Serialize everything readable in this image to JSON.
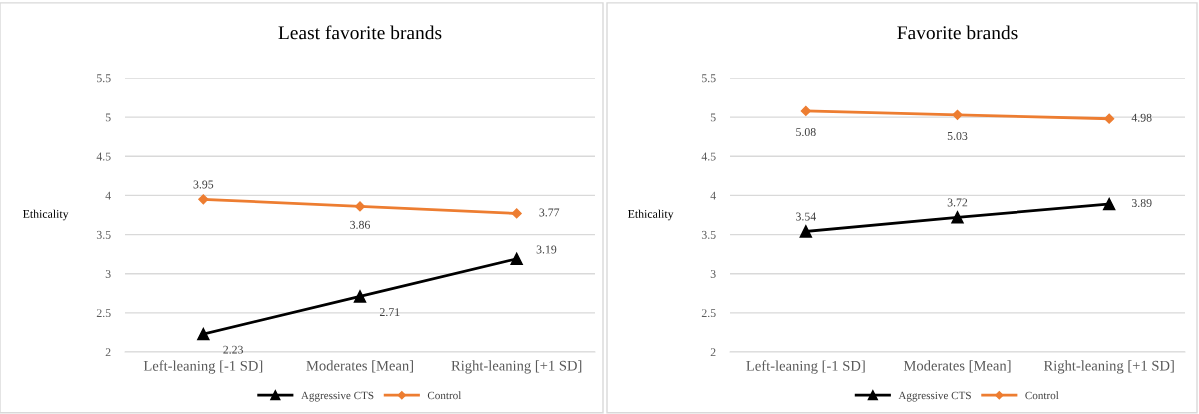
{
  "chart_data": [
    {
      "type": "line",
      "title": "Least favorite brands",
      "ylabel": "Ethicality",
      "categories": [
        "Left-leaning [-1 SD]",
        "Moderates [Mean]",
        "Right-leaning [+1 SD]"
      ],
      "ylim": [
        2,
        5.5
      ],
      "yticks": [
        2,
        2.5,
        3,
        3.5,
        4,
        4.5,
        5,
        5.5
      ],
      "grid": "y",
      "legend": "bottom",
      "data_labels": true,
      "series": [
        {
          "name": "Aggressive CTS",
          "color": "#000000",
          "marker": "triangle",
          "values": [
            2.23,
            2.71,
            3.19
          ]
        },
        {
          "name": "Control",
          "color": "#ed7d31",
          "marker": "diamond",
          "values": [
            3.95,
            3.86,
            3.77
          ]
        }
      ]
    },
    {
      "type": "line",
      "title": "Favorite brands",
      "ylabel": "Ethicality",
      "categories": [
        "Left-leaning [-1 SD]",
        "Moderates [Mean]",
        "Right-leaning [+1 SD]"
      ],
      "ylim": [
        2,
        5.5
      ],
      "yticks": [
        2,
        2.5,
        3,
        3.5,
        4,
        4.5,
        5,
        5.5
      ],
      "grid": "y",
      "legend": "bottom",
      "data_labels": true,
      "series": [
        {
          "name": "Aggressive CTS",
          "color": "#000000",
          "marker": "triangle",
          "values": [
            3.54,
            3.72,
            3.89
          ]
        },
        {
          "name": "Control",
          "color": "#ed7d31",
          "marker": "diamond",
          "values": [
            5.08,
            5.03,
            4.98
          ]
        }
      ]
    }
  ]
}
